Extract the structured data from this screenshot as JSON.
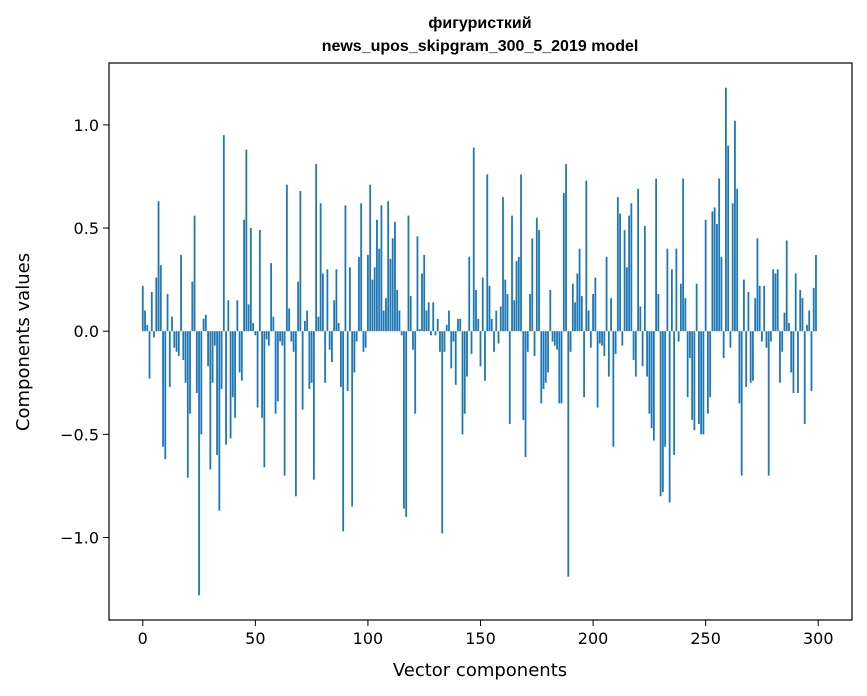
{
  "chart_data": {
    "type": "bar",
    "title_line1": "фигуристкий",
    "title_line2": "news_upos_skipgram_300_5_2019 model",
    "xlabel": "Vector components",
    "ylabel": "Components values",
    "xlim": [
      -15,
      315
    ],
    "ylim": [
      -1.4,
      1.3
    ],
    "xticks": [
      {
        "value": 0,
        "label": "0"
      },
      {
        "value": 50,
        "label": "50"
      },
      {
        "value": 100,
        "label": "100"
      },
      {
        "value": 150,
        "label": "150"
      },
      {
        "value": 200,
        "label": "200"
      },
      {
        "value": 250,
        "label": "250"
      },
      {
        "value": 300,
        "label": "300"
      }
    ],
    "yticks": [
      {
        "value": -1.0,
        "label": "−1.0"
      },
      {
        "value": -0.5,
        "label": "−0.5"
      },
      {
        "value": 0.0,
        "label": "0.0"
      },
      {
        "value": 0.5,
        "label": "0.5"
      },
      {
        "value": 1.0,
        "label": "1.0"
      }
    ],
    "bar_color": "#1f77b4",
    "values": [
      0.22,
      0.1,
      0.03,
      -0.23,
      0.19,
      -0.03,
      0.26,
      0.63,
      0.32,
      -0.56,
      -0.62,
      0.18,
      -0.27,
      0.07,
      -0.08,
      -0.1,
      -0.12,
      0.37,
      -0.14,
      -0.25,
      -0.71,
      -0.4,
      0.24,
      0.56,
      -0.3,
      -1.28,
      -0.5,
      0.06,
      0.08,
      -0.17,
      -0.67,
      -0.25,
      -0.07,
      -0.6,
      -0.87,
      -0.28,
      0.95,
      -0.55,
      0.15,
      -0.52,
      -0.32,
      -0.42,
      0.15,
      -0.2,
      -0.24,
      0.54,
      0.88,
      0.13,
      0.5,
      0.04,
      -0.02,
      -0.37,
      0.49,
      -0.42,
      -0.66,
      -0.04,
      -0.07,
      0.33,
      0.07,
      -0.4,
      -0.34,
      -0.05,
      -0.07,
      -0.7,
      0.71,
      0.11,
      -0.05,
      -0.1,
      -0.8,
      0.24,
      0.68,
      -0.38,
      0.05,
      0.1,
      -0.28,
      -0.25,
      -0.72,
      0.81,
      0.07,
      0.62,
      0.28,
      -0.25,
      0.3,
      -0.09,
      -0.15,
      0.15,
      0.3,
      0.04,
      -0.27,
      -0.97,
      0.61,
      -0.29,
      0.31,
      -0.85,
      -0.2,
      -0.05,
      0.36,
      0.62,
      -0.1,
      -0.08,
      0.37,
      0.71,
      0.25,
      0.31,
      0.54,
      0.4,
      0.61,
      0.1,
      0.16,
      0.63,
      0.35,
      0.45,
      0.53,
      0.2,
      0.1,
      -0.02,
      -0.86,
      -0.9,
      0.56,
      0.17,
      -0.09,
      -0.4,
      0.46,
      0.01,
      0.28,
      0.37,
      0.1,
      0.14,
      -0.02,
      0.14,
      -0.02,
      0.06,
      -0.1,
      -0.98,
      -0.1,
      0.03,
      0.1,
      -0.18,
      -0.05,
      -0.26,
      0.06,
      0.06,
      -0.5,
      -0.4,
      -0.22,
      0.36,
      -0.11,
      0.89,
      0.2,
      0.06,
      -0.17,
      0.26,
      -0.24,
      0.76,
      0.22,
      0.06,
      -0.1,
      0.1,
      -0.06,
      0.12,
      0.65,
      0.25,
      0.18,
      -0.45,
      0.56,
      0.15,
      0.34,
      0.36,
      0.76,
      -0.43,
      -0.61,
      -0.1,
      0.18,
      0.45,
      -0.12,
      0.55,
      0.49,
      -0.35,
      -0.28,
      -0.25,
      -0.2,
      0.2,
      -0.05,
      -0.07,
      -0.09,
      -0.35,
      -0.35,
      0.67,
      0.81,
      -1.19,
      -0.1,
      0.23,
      0.14,
      0.28,
      0.4,
      0.17,
      -0.32,
      0.73,
      0.1,
      -0.08,
      0.18,
      0.26,
      -0.37,
      -0.06,
      -0.07,
      -0.12,
      0.36,
      -0.22,
      0.16,
      -0.56,
      -0.11,
      0.65,
      0.57,
      -0.07,
      0.49,
      0.31,
      0.56,
      0.62,
      -0.14,
      -0.22,
      0.69,
      0.12,
      -0.17,
      0.51,
      -0.22,
      -0.4,
      -0.47,
      -0.53,
      0.74,
      0.18,
      -0.8,
      -0.78,
      -0.56,
      0.4,
      -0.83,
      0.3,
      -0.6,
      0.4,
      -0.05,
      0.23,
      0.74,
      0.16,
      -0.32,
      -0.13,
      -0.43,
      -0.48,
      0.23,
      -0.45,
      -0.5,
      -0.5,
      0.54,
      -0.4,
      -0.32,
      0.58,
      0.6,
      0.52,
      0.74,
      0.36,
      -0.13,
      1.18,
      0.9,
      -0.08,
      0.62,
      1.02,
      0.69,
      -0.35,
      -0.7,
      0.25,
      -0.27,
      0.19,
      -0.25,
      -0.24,
      0.16,
      0.45,
      0.22,
      -0.05,
      0.22,
      -0.08,
      -0.7,
      -0.05,
      0.3,
      0.28,
      0.3,
      -0.25,
      -0.1,
      0.09,
      0.44,
      0.04,
      -0.2,
      -0.3,
      0.28,
      -0.3,
      0.2,
      0.16,
      -0.45,
      0.03,
      0.1,
      -0.29,
      0.21,
      0.37
    ]
  }
}
